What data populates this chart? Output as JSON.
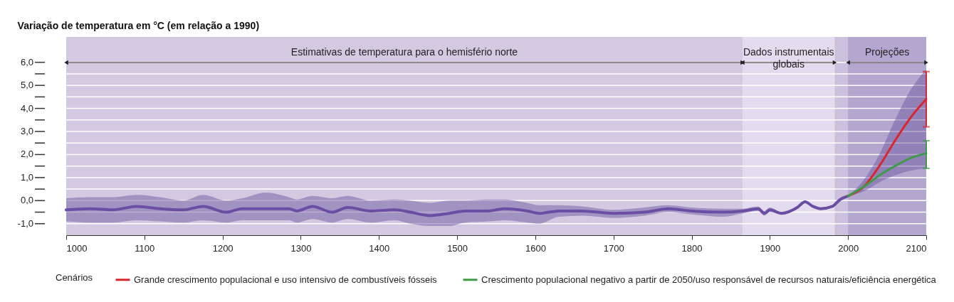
{
  "chart_data": {
    "type": "line",
    "title": "Variação de temperatura em °C (em relação a 1990)",
    "legend_title": "Cenários",
    "xlim": [
      1000,
      2100
    ],
    "xticks": [
      1000,
      1100,
      1200,
      1300,
      1400,
      1500,
      1600,
      1700,
      1800,
      1900,
      2000,
      2100
    ],
    "ylim": [
      -1.5,
      7.1
    ],
    "yticks": [
      {
        "value": -1,
        "label": "-1,0"
      },
      {
        "value": -0.5,
        "label": null
      },
      {
        "value": 0,
        "label": "0,0"
      },
      {
        "value": 0.5,
        "label": null
      },
      {
        "value": 1,
        "label": "1,0"
      },
      {
        "value": 1.5,
        "label": null
      },
      {
        "value": 2,
        "label": "2,0"
      },
      {
        "value": 2.5,
        "label": null
      },
      {
        "value": 3,
        "label": "3,0"
      },
      {
        "value": 3.5,
        "label": null
      },
      {
        "value": 4,
        "label": "4,0"
      },
      {
        "value": 4.5,
        "label": null
      },
      {
        "value": 5,
        "label": "5,0"
      },
      {
        "value": 5.5,
        "label": null
      },
      {
        "value": 6,
        "label": "6,0"
      }
    ],
    "grid": "y",
    "legend": "bottom",
    "line_style": "solid",
    "marker": "none",
    "bands": [
      {
        "axis": "x",
        "from": 1000,
        "to": 1865,
        "label": "Estimativas de temperatura para o hemisfério norte",
        "color": "#d3cae2"
      },
      {
        "axis": "x",
        "from": 1865,
        "to": 1983,
        "label": "Dados instrumentais globais",
        "color": "#e2dcee"
      },
      {
        "axis": "x",
        "from": 2000,
        "to": 2100,
        "label": "Projeções",
        "color": "#b3a7d0"
      }
    ],
    "series": [
      {
        "color": "#6b4ea3",
        "x": [
          1000,
          1030,
          1060,
          1090,
          1120,
          1150,
          1175,
          1205,
          1225,
          1255,
          1285,
          1295,
          1315,
          1340,
          1360,
          1390,
          1420,
          1440,
          1465,
          1490,
          1510,
          1540,
          1560,
          1590,
          1605,
          1630,
          1660,
          1700,
          1740,
          1770,
          1800,
          1840,
          1865,
          1885,
          1893,
          1900,
          1915,
          1935,
          1945,
          1955,
          1965,
          1980,
          1990,
          2000
        ],
        "values": [
          -0.4,
          -0.35,
          -0.4,
          -0.25,
          -0.35,
          -0.4,
          -0.25,
          -0.5,
          -0.35,
          -0.35,
          -0.35,
          -0.45,
          -0.25,
          -0.5,
          -0.3,
          -0.45,
          -0.4,
          -0.5,
          -0.65,
          -0.55,
          -0.45,
          -0.45,
          -0.35,
          -0.45,
          -0.55,
          -0.45,
          -0.45,
          -0.55,
          -0.5,
          -0.35,
          -0.45,
          -0.5,
          -0.45,
          -0.35,
          -0.55,
          -0.4,
          -0.55,
          -0.3,
          -0.05,
          -0.25,
          -0.35,
          -0.25,
          0.05,
          0.2
        ],
        "lower": [
          -0.9,
          -0.95,
          -0.95,
          -0.85,
          -0.9,
          -0.95,
          -0.85,
          -0.95,
          -0.85,
          -0.85,
          -0.85,
          -0.95,
          -0.8,
          -0.95,
          -0.8,
          -0.95,
          -0.85,
          -1.0,
          -1.1,
          -1.1,
          -0.95,
          -0.9,
          -0.85,
          -0.95,
          -1.0,
          -0.7,
          -0.65,
          -0.75,
          -0.65,
          -0.5,
          -0.6,
          -0.7,
          -0.55,
          -0.45,
          -0.65,
          -0.5,
          -0.6,
          -0.35,
          -0.1,
          -0.3,
          -0.4,
          -0.3,
          0.0,
          0.15
        ],
        "upper": [
          0.1,
          0.15,
          0.15,
          0.25,
          0.15,
          0.0,
          0.25,
          0.0,
          0.1,
          0.35,
          0.15,
          0.05,
          0.2,
          0.1,
          0.2,
          0.0,
          0.05,
          0.0,
          -0.1,
          0.0,
          0.0,
          0.05,
          0.05,
          -0.1,
          -0.2,
          -0.2,
          -0.25,
          -0.4,
          -0.3,
          -0.2,
          -0.3,
          -0.35,
          -0.35,
          -0.25,
          -0.45,
          -0.3,
          -0.5,
          -0.25,
          0.0,
          -0.2,
          -0.3,
          -0.2,
          0.1,
          0.25
        ]
      },
      {
        "name": "Grande crescimento populacional e uso intensivo de combustíveis fósseis",
        "color": "#d9262e",
        "x": [
          2000,
          2020,
          2040,
          2060,
          2080,
          2100
        ],
        "values": [
          0.2,
          0.6,
          1.5,
          2.6,
          3.6,
          4.4
        ],
        "lower": [
          0.2,
          0.4,
          0.8,
          1.1,
          1.3,
          1.4
        ],
        "upper": [
          0.2,
          0.9,
          2.0,
          3.5,
          4.8,
          5.7
        ],
        "errors": [
          null,
          null,
          null,
          null,
          null,
          [
            3.2,
            5.6
          ]
        ]
      },
      {
        "name": "Crescimento populacional negativo a partir de 2050/uso responsável de recursos naturais/eficiência energética",
        "color": "#3f9a48",
        "x": [
          2000,
          2020,
          2040,
          2060,
          2080,
          2100
        ],
        "values": [
          0.2,
          0.6,
          1.1,
          1.5,
          1.85,
          2.05
        ],
        "errors": [
          null,
          null,
          null,
          null,
          null,
          [
            1.4,
            2.6
          ]
        ]
      }
    ]
  }
}
